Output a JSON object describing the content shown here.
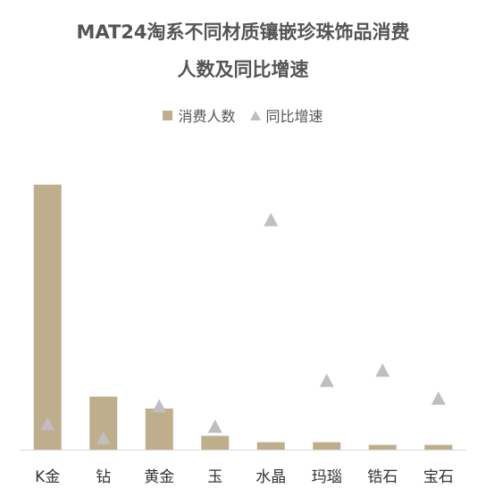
{
  "chart_data": {
    "type": "bar",
    "title_line1": "MAT24淘系不同材质镶嵌珍珠饰品消费",
    "title_line2": "人数及同比增速",
    "categories": [
      "K金",
      "钻",
      "黄金",
      "玉",
      "水晶",
      "玛瑙",
      "锆石",
      "宝石"
    ],
    "series": [
      {
        "name": "消费人数",
        "kind": "bar",
        "color": "#BFAE8C",
        "values": [
          100,
          20,
          15.5,
          5.2,
          2.8,
          2.8,
          1.8,
          1.8
        ]
      },
      {
        "name": "同比增速",
        "kind": "scatter",
        "marker": "triangle",
        "color": "#BFBFBF",
        "values": [
          10,
          4.5,
          17,
          9,
          90,
          27,
          31,
          20
        ]
      }
    ],
    "bar_ylim": [
      0,
      100
    ],
    "marker_ylim": [
      0,
      100
    ],
    "legend_position": "top-center",
    "grid": false
  }
}
